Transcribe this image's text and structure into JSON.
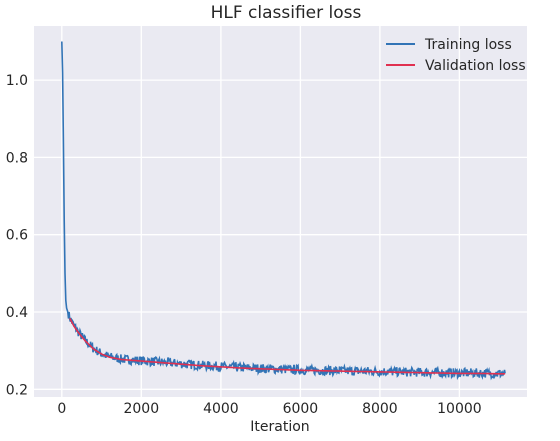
{
  "chart_data": {
    "type": "line",
    "title": "HLF classifier loss",
    "xlabel": "Iteration",
    "ylabel": "",
    "xlim": [
      -700,
      11700
    ],
    "ylim": [
      0.18,
      1.14
    ],
    "xticks": [
      0,
      2000,
      4000,
      6000,
      8000,
      10000
    ],
    "xtick_labels": [
      "0",
      "2000",
      "4000",
      "6000",
      "8000",
      "10000"
    ],
    "yticks": [
      0.2,
      0.4,
      0.6,
      0.8,
      1.0
    ],
    "ytick_labels": [
      "0.2",
      "0.4",
      "0.6",
      "0.8",
      "1.0"
    ],
    "grid": true,
    "legend_position": "top-right",
    "colors": {
      "background": "#eaeaf2",
      "grid": "#ffffff",
      "training": "#3274b6",
      "validation": "#e03050"
    },
    "series": [
      {
        "name": "Training loss",
        "noise": 0.012,
        "x": [
          0,
          20,
          40,
          60,
          80,
          100,
          120,
          150,
          200,
          300,
          400,
          500,
          600,
          800,
          1000,
          1200,
          1500,
          2000,
          2500,
          3000,
          3500,
          4000,
          4500,
          5000,
          5500,
          6000,
          6500,
          7000,
          7500,
          8000,
          8500,
          9000,
          9500,
          10000,
          10500,
          11000,
          11150
        ],
        "y": [
          1.1,
          1.02,
          0.84,
          0.64,
          0.5,
          0.43,
          0.41,
          0.4,
          0.385,
          0.365,
          0.35,
          0.337,
          0.325,
          0.305,
          0.292,
          0.284,
          0.278,
          0.274,
          0.27,
          0.266,
          0.262,
          0.259,
          0.256,
          0.254,
          0.252,
          0.25,
          0.249,
          0.248,
          0.247,
          0.246,
          0.245,
          0.244,
          0.243,
          0.242,
          0.242,
          0.241,
          0.241
        ]
      },
      {
        "name": "Validation loss",
        "x": [
          200,
          300,
          400,
          500,
          600,
          800,
          1000,
          1200,
          1500,
          2000,
          2500,
          3000,
          3500,
          4000,
          4500,
          5000,
          5500,
          6000,
          6500,
          7000,
          7500,
          8000,
          8500,
          9000,
          9500,
          10000,
          10500,
          11000,
          11150
        ],
        "y": [
          0.384,
          0.364,
          0.349,
          0.336,
          0.324,
          0.304,
          0.291,
          0.283,
          0.277,
          0.273,
          0.269,
          0.265,
          0.261,
          0.258,
          0.255,
          0.253,
          0.251,
          0.249,
          0.248,
          0.247,
          0.246,
          0.245,
          0.244,
          0.243,
          0.242,
          0.241,
          0.241,
          0.24,
          0.24
        ]
      }
    ]
  }
}
